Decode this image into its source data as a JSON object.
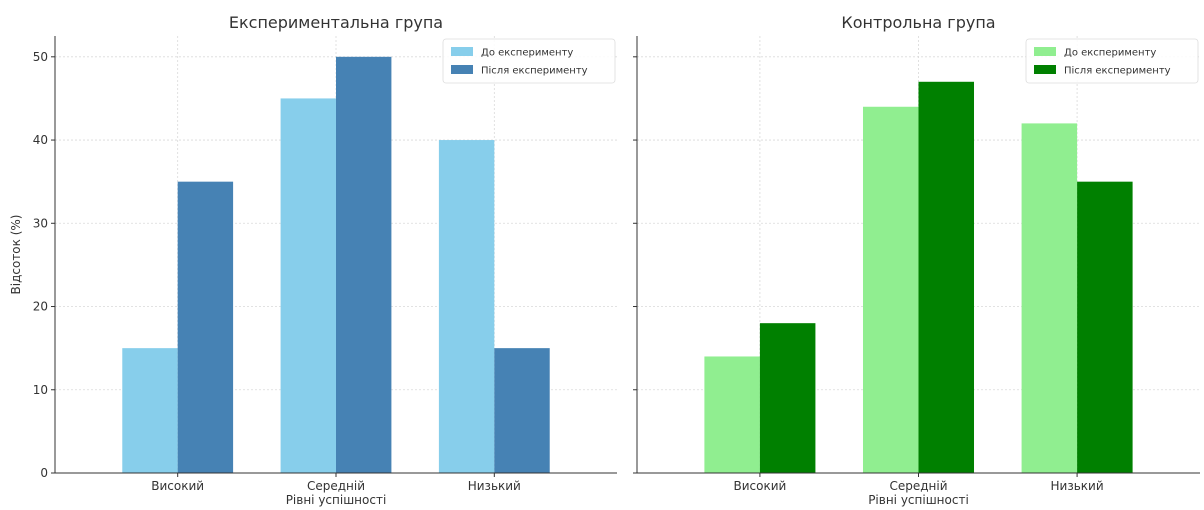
{
  "chart_data": [
    {
      "type": "bar",
      "title": "Експериментальна група",
      "xlabel": "Рівні успішності",
      "ylabel": "Відсоток (%)",
      "categories": [
        "Високий",
        "Середній",
        "Низький"
      ],
      "ylim": [
        0,
        52.5
      ],
      "yticks": [
        0,
        10,
        20,
        30,
        40,
        50
      ],
      "grid": true,
      "legend_position": "top-right",
      "series": [
        {
          "name": "До експерименту",
          "color": "#87ceeb",
          "values": [
            15,
            45,
            40
          ]
        },
        {
          "name": "Після експерименту",
          "color": "#4682b4",
          "values": [
            35,
            50,
            15
          ]
        }
      ]
    },
    {
      "type": "bar",
      "title": "Контрольна група",
      "xlabel": "Рівні успішності",
      "ylabel": "",
      "categories": [
        "Високий",
        "Середній",
        "Низький"
      ],
      "ylim": [
        0,
        52.5
      ],
      "yticks": [
        0,
        10,
        20,
        30,
        40,
        50
      ],
      "grid": true,
      "legend_position": "top-right",
      "series": [
        {
          "name": "До експерименту",
          "color": "#90ee90",
          "values": [
            14,
            44,
            42
          ]
        },
        {
          "name": "Після експерименту",
          "color": "#008000",
          "values": [
            18,
            47,
            35
          ]
        }
      ]
    }
  ]
}
